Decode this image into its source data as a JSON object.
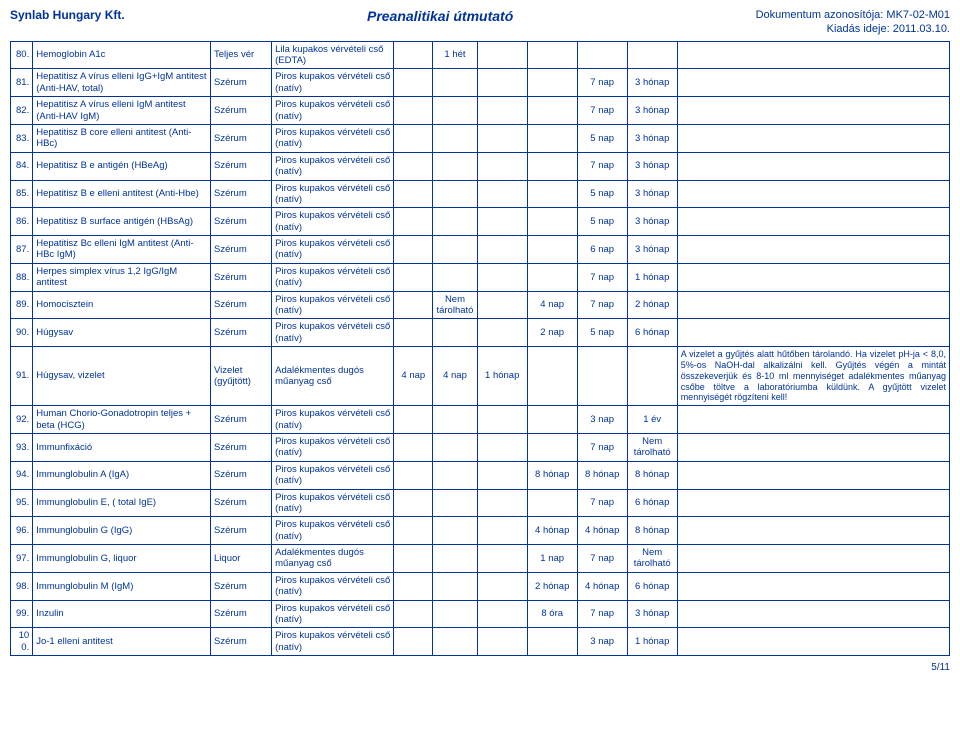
{
  "header": {
    "company": "Synlab Hungary Kft.",
    "title": "Preanalitikai útmutató",
    "docid": "Dokumentum azonosítója: MK7-02-M01",
    "issued": "Kiadás ideje: 2011.03.10."
  },
  "tube_labels": {
    "lila_edta": "Lila kupakos vérvételi cső (EDTA)",
    "piros_nativ": "Piros kupakos vérvételi cső (natív)",
    "adalekmentes": "Adalékmentes dugós műanyag cső"
  },
  "rows": [
    {
      "num": "80.",
      "name": "Hemoglobin A1c",
      "sample": "Teljes vér",
      "tube": "lila_edta",
      "c4": "",
      "c5": "1 hét",
      "c6": "",
      "c7": "",
      "c8": "",
      "c9": "",
      "note": ""
    },
    {
      "num": "81.",
      "name": "Hepatitisz A vírus elleni IgG+IgM antitest (Anti-HAV, total)",
      "sample": "Szérum",
      "tube": "piros_nativ",
      "c4": "",
      "c5": "",
      "c6": "",
      "c7": "",
      "c8": "7 nap",
      "c9": "3 hónap",
      "note": ""
    },
    {
      "num": "82.",
      "name": "Hepatitisz A vírus elleni IgM antitest (Anti-HAV IgM)",
      "sample": "Szérum",
      "tube": "piros_nativ",
      "c4": "",
      "c5": "",
      "c6": "",
      "c7": "",
      "c8": "7 nap",
      "c9": "3 hónap",
      "note": ""
    },
    {
      "num": "83.",
      "name": "Hepatitisz B core elleni antitest (Anti-HBc)",
      "sample": "Szérum",
      "tube": "piros_nativ",
      "c4": "",
      "c5": "",
      "c6": "",
      "c7": "",
      "c8": "5 nap",
      "c9": "3 hónap",
      "note": ""
    },
    {
      "num": "84.",
      "name": "Hepatitisz B e antigén (HBeAg)",
      "sample": "Szérum",
      "tube": "piros_nativ",
      "c4": "",
      "c5": "",
      "c6": "",
      "c7": "",
      "c8": "7 nap",
      "c9": "3 hónap",
      "note": ""
    },
    {
      "num": "85.",
      "name": "Hepatitisz B e elleni antitest (Anti-Hbe)",
      "sample": "Szérum",
      "tube": "piros_nativ",
      "c4": "",
      "c5": "",
      "c6": "",
      "c7": "",
      "c8": "5 nap",
      "c9": "3 hónap",
      "note": ""
    },
    {
      "num": "86.",
      "name": "Hepatitisz B surface antigén (HBsAg)",
      "sample": "Szérum",
      "tube": "piros_nativ",
      "c4": "",
      "c5": "",
      "c6": "",
      "c7": "",
      "c8": "5 nap",
      "c9": "3 hónap",
      "note": ""
    },
    {
      "num": "87.",
      "name": "Hepatitisz Bc elleni IgM antitest (Anti-HBc IgM)",
      "sample": "Szérum",
      "tube": "piros_nativ",
      "c4": "",
      "c5": "",
      "c6": "",
      "c7": "",
      "c8": "6 nap",
      "c9": "3 hónap",
      "note": ""
    },
    {
      "num": "88.",
      "name": "Herpes simplex vírus 1,2 IgG/IgM antitest",
      "sample": "Szérum",
      "tube": "piros_nativ",
      "c4": "",
      "c5": "",
      "c6": "",
      "c7": "",
      "c8": "7 nap",
      "c9": "1 hónap",
      "note": ""
    },
    {
      "num": "89.",
      "name": "Homocisztein",
      "sample": "Szérum",
      "tube": "piros_nativ",
      "c4": "",
      "c5": "Nem tárolható",
      "c6": "",
      "c7": "4 nap",
      "c8": "7 nap",
      "c9": "2 hónap",
      "note": ""
    },
    {
      "num": "90.",
      "name": "Húgysav",
      "sample": "Szérum",
      "tube": "piros_nativ",
      "c4": "",
      "c5": "",
      "c6": "",
      "c7": "2 nap",
      "c8": "5 nap",
      "c9": "6 hónap",
      "note": ""
    },
    {
      "num": "91.",
      "name": "Húgysav, vizelet",
      "sample": "Vizelet (gyűjtött)",
      "tube": "adalekmentes",
      "c4": "4 nap",
      "c5": "4 nap",
      "c6": "1 hónap",
      "c7": "",
      "c8": "",
      "c9": "",
      "note": "A vizelet a gyűjtés alatt hűtőben tárolandó. Ha vizelet pH-ja < 8,0, 5%-os NaOH-dal alkalizálni kell. Gyűjtés végén a mintát összekeverjük és 8-10 ml mennyiséget adalékmentes műanyag csőbe töltve a laboratóriumba küldünk. A gyűjtött vizelet mennyiségét rögzíteni kell!"
    },
    {
      "num": "92.",
      "name": "Human Chorio-Gonadotropin teljes + beta (HCG)",
      "sample": "Szérum",
      "tube": "piros_nativ",
      "c4": "",
      "c5": "",
      "c6": "",
      "c7": "",
      "c8": "3 nap",
      "c9": "1 év",
      "note": ""
    },
    {
      "num": "93.",
      "name": "Immunfixáció",
      "sample": "Szérum",
      "tube": "piros_nativ",
      "c4": "",
      "c5": "",
      "c6": "",
      "c7": "",
      "c8": "7 nap",
      "c9": "Nem tárolható",
      "note": ""
    },
    {
      "num": "94.",
      "name": "Immunglobulin A (IgA)",
      "sample": "Szérum",
      "tube": "piros_nativ",
      "c4": "",
      "c5": "",
      "c6": "",
      "c7": "8 hónap",
      "c8": "8 hónap",
      "c9": "8 hónap",
      "note": ""
    },
    {
      "num": "95.",
      "name": "Immunglobulin E, ( total IgE)",
      "sample": "Szérum",
      "tube": "piros_nativ",
      "c4": "",
      "c5": "",
      "c6": "",
      "c7": "",
      "c8": "7 nap",
      "c9": "6 hónap",
      "note": ""
    },
    {
      "num": "96.",
      "name": "Immunglobulin G (IgG)",
      "sample": "Szérum",
      "tube": "piros_nativ",
      "c4": "",
      "c5": "",
      "c6": "",
      "c7": "4 hónap",
      "c8": "4 hónap",
      "c9": "8 hónap",
      "note": ""
    },
    {
      "num": "97.",
      "name": "Immunglobulin G, liquor",
      "sample": "Liquor",
      "tube": "adalekmentes",
      "c4": "",
      "c5": "",
      "c6": "",
      "c7": "1 nap",
      "c8": "7 nap",
      "c9": "Nem tárolható",
      "note": ""
    },
    {
      "num": "98.",
      "name": "Immunglobulin M (IgM)",
      "sample": "Szérum",
      "tube": "piros_nativ",
      "c4": "",
      "c5": "",
      "c6": "",
      "c7": "2 hónap",
      "c8": "4 hónap",
      "c9": "6 hónap",
      "note": ""
    },
    {
      "num": "99.",
      "name": "Inzulin",
      "sample": "Szérum",
      "tube": "piros_nativ",
      "c4": "",
      "c5": "",
      "c6": "",
      "c7": "8 óra",
      "c8": "7 nap",
      "c9": "3 hónap",
      "note": ""
    },
    {
      "num": "100.",
      "name": "Jo-1 elleni antitest",
      "sample": "Szérum",
      "tube": "piros_nativ",
      "c4": "",
      "c5": "",
      "c6": "",
      "c7": "",
      "c8": "3 nap",
      "c9": "1 hónap",
      "note": ""
    }
  ],
  "footer": {
    "page": "5/11"
  }
}
